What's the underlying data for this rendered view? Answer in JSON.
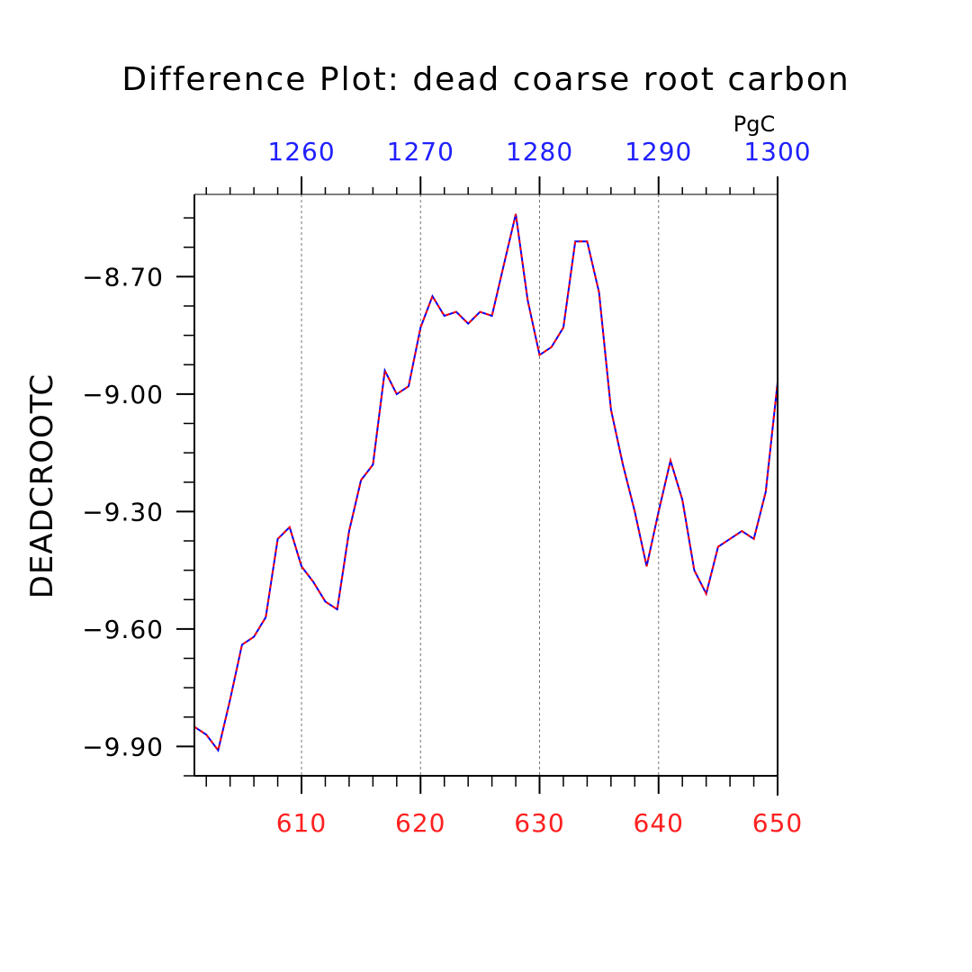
{
  "chart_data": {
    "type": "line",
    "title": "Difference Plot: dead coarse root carbon",
    "ylabel": "DEADCROOTC",
    "top_axis_units": "PgC",
    "xlim": [
      601,
      650
    ],
    "ylim": [
      -9.975,
      -8.49
    ],
    "yticks": [
      -9.9,
      -9.6,
      -9.3,
      -9.0,
      -8.7
    ],
    "ytick_labels": [
      "−9.90",
      "−9.60",
      "−9.30",
      "−9.00",
      "−8.70"
    ],
    "xticks_bottom": [
      610,
      620,
      630,
      640,
      650
    ],
    "xtick_labels_bottom": [
      "610",
      "620",
      "630",
      "640",
      "650"
    ],
    "bottom_axis_color": "#ff2020",
    "top_axis": {
      "ticks": [
        1260,
        1270,
        1280,
        1290,
        1300
      ],
      "labels": [
        "1260",
        "1270",
        "1280",
        "1290",
        "1300"
      ],
      "xlim": [
        1251,
        1300
      ],
      "color": "#2020ff"
    },
    "grid": "vertical dashed at major ticks",
    "series": [
      {
        "color": "#0000ff",
        "style": "solid",
        "x": [
          601,
          602,
          603,
          604,
          605,
          606,
          607,
          608,
          609,
          610,
          611,
          612,
          613,
          614,
          615,
          616,
          617,
          618,
          619,
          620,
          621,
          622,
          623,
          624,
          625,
          626,
          627,
          628,
          629,
          630,
          631,
          632,
          633,
          634,
          635,
          636,
          637,
          638,
          639,
          640,
          641,
          642,
          643,
          644,
          645,
          646,
          647,
          648,
          649,
          650
        ],
        "y": [
          -9.85,
          -9.87,
          -9.91,
          -9.78,
          -9.64,
          -9.62,
          -9.57,
          -9.37,
          -9.34,
          -9.44,
          -9.48,
          -9.53,
          -9.55,
          -9.35,
          -9.22,
          -9.18,
          -8.94,
          -9.0,
          -8.98,
          -8.83,
          -8.75,
          -8.8,
          -8.79,
          -8.82,
          -8.79,
          -8.8,
          -8.67,
          -8.54,
          -8.76,
          -8.9,
          -8.88,
          -8.83,
          -8.61,
          -8.61,
          -8.74,
          -9.04,
          -9.18,
          -9.3,
          -9.44,
          -9.3,
          -9.17,
          -9.27,
          -9.45,
          -9.51,
          -9.39,
          -9.37,
          -9.35,
          -9.37,
          -9.25,
          -8.97
        ]
      },
      {
        "color": "#ff0000",
        "style": "dashed",
        "x": [
          601,
          602,
          603,
          604,
          605,
          606,
          607,
          608,
          609,
          610,
          611,
          612,
          613,
          614,
          615,
          616,
          617,
          618,
          619,
          620,
          621,
          622,
          623,
          624,
          625,
          626,
          627,
          628,
          629,
          630,
          631,
          632,
          633,
          634,
          635,
          636,
          637,
          638,
          639,
          640,
          641,
          642,
          643,
          644,
          645,
          646,
          647,
          648,
          649,
          650
        ],
        "y": [
          -9.85,
          -9.87,
          -9.91,
          -9.78,
          -9.64,
          -9.62,
          -9.57,
          -9.37,
          -9.34,
          -9.44,
          -9.48,
          -9.53,
          -9.55,
          -9.35,
          -9.22,
          -9.18,
          -8.94,
          -9.0,
          -8.98,
          -8.83,
          -8.75,
          -8.8,
          -8.79,
          -8.82,
          -8.79,
          -8.8,
          -8.67,
          -8.54,
          -8.76,
          -8.9,
          -8.88,
          -8.83,
          -8.61,
          -8.61,
          -8.74,
          -9.04,
          -9.18,
          -9.3,
          -9.44,
          -9.3,
          -9.17,
          -9.27,
          -9.45,
          -9.51,
          -9.39,
          -9.37,
          -9.35,
          -9.37,
          -9.25,
          -8.97
        ]
      }
    ]
  }
}
